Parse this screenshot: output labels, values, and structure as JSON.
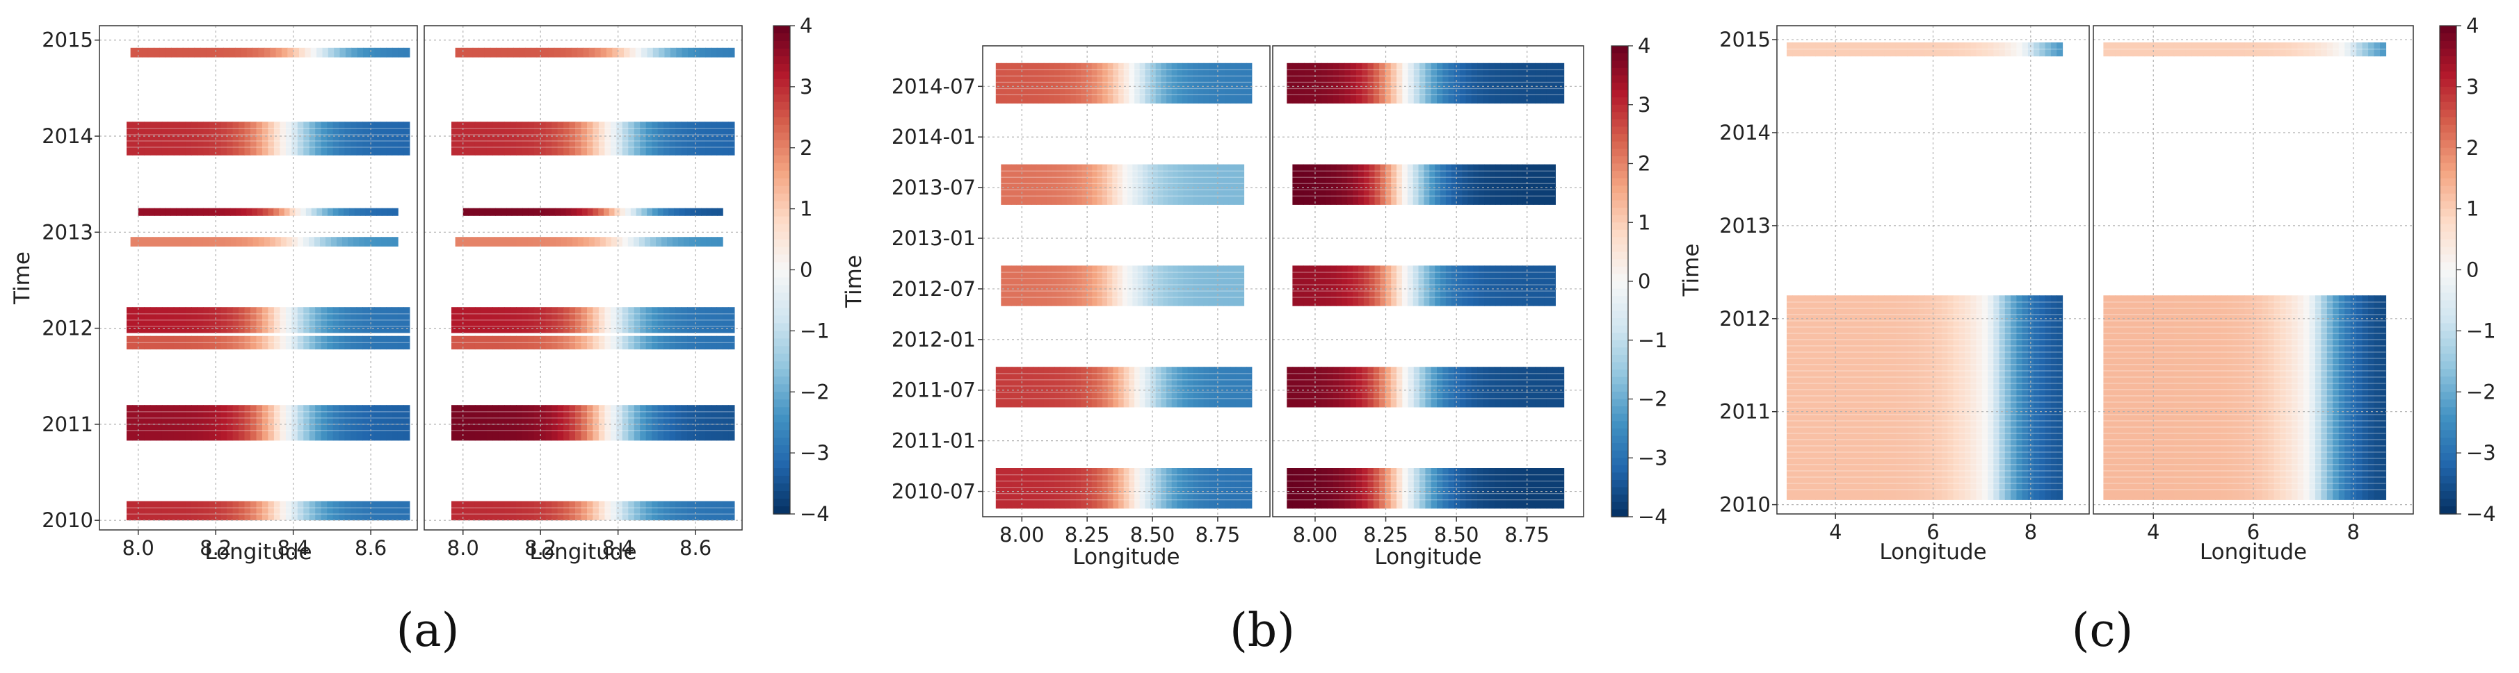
{
  "figure": {
    "colormap": {
      "name": "RdBu_r",
      "range": [
        -4,
        4
      ],
      "stops": [
        "#053061",
        "#2166ac",
        "#4393c3",
        "#92c5de",
        "#d1e5f0",
        "#f7f7f7",
        "#fddbc7",
        "#f4a582",
        "#d6604d",
        "#b2182b",
        "#67001f"
      ]
    },
    "grid_color": "#b0b0b0"
  },
  "chart_data": [
    {
      "type": "heatmap",
      "panel": "(a)",
      "caption": "(a)",
      "xlabel": "Longitude",
      "ylabel": "Time",
      "xlim": [
        7.9,
        8.72
      ],
      "xticks": [
        8.0,
        8.2,
        8.4,
        8.6
      ],
      "xtick_labels": [
        "8.0",
        "8.2",
        "8.4",
        "8.6"
      ],
      "ylim": [
        2009.9,
        2015.15
      ],
      "yticks": [
        2010,
        2011,
        2012,
        2013,
        2014,
        2015
      ],
      "ytick_labels": [
        "2010",
        "2011",
        "2012",
        "2013",
        "2014",
        "2015"
      ],
      "colorbar": {
        "min": -4,
        "max": 4,
        "ticks": [
          4,
          3,
          2,
          1,
          0,
          -1,
          -2,
          -3,
          -4
        ],
        "tick_labels": [
          "4",
          "3",
          "2",
          "1",
          "0",
          "−1",
          "−2",
          "−3",
          "−4"
        ]
      },
      "subplots": [
        {
          "name": "left",
          "bands": [
            {
              "t0": 2010.0,
              "t1": 2010.2,
              "x0": 7.97,
              "x1": 8.7,
              "left": 3.0,
              "right": -3.0,
              "mid": 8.38
            },
            {
              "t0": 2010.83,
              "t1": 2011.2,
              "x0": 7.97,
              "x1": 8.7,
              "left": 3.5,
              "right": -3.3,
              "mid": 8.38
            },
            {
              "t0": 2011.78,
              "t1": 2011.92,
              "x0": 7.97,
              "x1": 8.7,
              "left": 2.5,
              "right": -3.0,
              "mid": 8.38
            },
            {
              "t0": 2011.95,
              "t1": 2012.22,
              "x0": 7.97,
              "x1": 8.7,
              "left": 3.2,
              "right": -3.0,
              "mid": 8.38
            },
            {
              "t0": 2012.85,
              "t1": 2012.95,
              "x0": 7.98,
              "x1": 8.67,
              "left": 2.0,
              "right": -2.5,
              "mid": 8.42
            },
            {
              "t0": 2013.17,
              "t1": 2013.25,
              "x0": 8.0,
              "x1": 8.67,
              "left": 3.5,
              "right": -3.2,
              "mid": 8.42
            },
            {
              "t0": 2013.8,
              "t1": 2014.15,
              "x0": 7.97,
              "x1": 8.7,
              "left": 3.0,
              "right": -3.2,
              "mid": 8.38
            },
            {
              "t0": 2014.82,
              "t1": 2014.92,
              "x0": 7.98,
              "x1": 8.7,
              "left": 2.5,
              "right": -2.8,
              "mid": 8.45
            }
          ]
        },
        {
          "name": "right",
          "bands": [
            {
              "t0": 2010.0,
              "t1": 2010.2,
              "x0": 7.97,
              "x1": 8.7,
              "left": 3.0,
              "right": -3.0,
              "mid": 8.38
            },
            {
              "t0": 2010.83,
              "t1": 2011.2,
              "x0": 7.97,
              "x1": 8.7,
              "left": 3.8,
              "right": -3.5,
              "mid": 8.38
            },
            {
              "t0": 2011.78,
              "t1": 2011.92,
              "x0": 7.97,
              "x1": 8.7,
              "left": 2.5,
              "right": -3.0,
              "mid": 8.38
            },
            {
              "t0": 2011.95,
              "t1": 2012.22,
              "x0": 7.97,
              "x1": 8.7,
              "left": 3.2,
              "right": -3.0,
              "mid": 8.38
            },
            {
              "t0": 2012.85,
              "t1": 2012.95,
              "x0": 7.98,
              "x1": 8.67,
              "left": 2.0,
              "right": -2.5,
              "mid": 8.42
            },
            {
              "t0": 2013.17,
              "t1": 2013.25,
              "x0": 8.0,
              "x1": 8.67,
              "left": 3.8,
              "right": -3.5,
              "mid": 8.42
            },
            {
              "t0": 2013.8,
              "t1": 2014.15,
              "x0": 7.97,
              "x1": 8.7,
              "left": 3.0,
              "right": -3.2,
              "mid": 8.38
            },
            {
              "t0": 2014.82,
              "t1": 2014.92,
              "x0": 7.98,
              "x1": 8.7,
              "left": 2.5,
              "right": -2.8,
              "mid": 8.45
            }
          ]
        }
      ]
    },
    {
      "type": "heatmap",
      "panel": "(b)",
      "caption": "(b)",
      "xlabel": "Longitude",
      "ylabel": "Time",
      "xlim": [
        7.85,
        8.95
      ],
      "xticks": [
        8.0,
        8.25,
        8.5,
        8.75
      ],
      "xtick_labels": [
        "8.00",
        "8.25",
        "8.50",
        "8.75"
      ],
      "ylim": [
        2010.25,
        2014.9
      ],
      "yticks": [
        2010.5,
        2011.0,
        2011.5,
        2012.0,
        2012.5,
        2013.0,
        2013.5,
        2014.0,
        2014.5
      ],
      "ytick_labels": [
        "2010-07",
        "2011-01",
        "2011-07",
        "2012-01",
        "2012-07",
        "2013-01",
        "2013-07",
        "2014-01",
        "2014-07"
      ],
      "colorbar": {
        "min": -4,
        "max": 4,
        "ticks": [
          4,
          3,
          2,
          1,
          0,
          -1,
          -2,
          -3,
          -4
        ],
        "tick_labels": [
          "4",
          "3",
          "2",
          "1",
          "0",
          "−1",
          "−2",
          "−3",
          "−4"
        ]
      },
      "subplots": [
        {
          "name": "left",
          "bands": [
            {
              "t0": 2010.33,
              "t1": 2010.73,
              "x0": 7.9,
              "x1": 8.88,
              "left": 3.0,
              "right": -3.0,
              "mid": 8.45
            },
            {
              "t0": 2011.33,
              "t1": 2011.73,
              "x0": 7.9,
              "x1": 8.88,
              "left": 2.8,
              "right": -2.8,
              "mid": 8.45
            },
            {
              "t0": 2012.33,
              "t1": 2012.73,
              "x0": 7.92,
              "x1": 8.85,
              "left": 2.2,
              "right": -1.8,
              "mid": 8.4
            },
            {
              "t0": 2013.33,
              "t1": 2013.73,
              "x0": 7.92,
              "x1": 8.85,
              "left": 2.2,
              "right": -1.8,
              "mid": 8.4
            },
            {
              "t0": 2014.33,
              "t1": 2014.73,
              "x0": 7.9,
              "x1": 8.88,
              "left": 2.5,
              "right": -2.8,
              "mid": 8.42
            }
          ]
        },
        {
          "name": "right",
          "bands": [
            {
              "t0": 2010.33,
              "t1": 2010.73,
              "x0": 7.9,
              "x1": 8.88,
              "left": 4.0,
              "right": -3.8,
              "mid": 8.32
            },
            {
              "t0": 2011.33,
              "t1": 2011.73,
              "x0": 7.9,
              "x1": 8.88,
              "left": 3.8,
              "right": -3.6,
              "mid": 8.32
            },
            {
              "t0": 2012.33,
              "t1": 2012.73,
              "x0": 7.92,
              "x1": 8.85,
              "left": 3.5,
              "right": -3.4,
              "mid": 8.32
            },
            {
              "t0": 2013.33,
              "t1": 2013.73,
              "x0": 7.92,
              "x1": 8.85,
              "left": 4.0,
              "right": -3.8,
              "mid": 8.32
            },
            {
              "t0": 2014.33,
              "t1": 2014.73,
              "x0": 7.9,
              "x1": 8.88,
              "left": 3.8,
              "right": -3.6,
              "mid": 8.32
            }
          ]
        }
      ]
    },
    {
      "type": "heatmap",
      "panel": "(c)",
      "caption": "(c)",
      "xlabel": "Longitude",
      "ylabel": "Time",
      "xlim": [
        2.8,
        9.2
      ],
      "xticks": [
        4,
        6,
        8
      ],
      "xtick_labels": [
        "4",
        "6",
        "8"
      ],
      "ylim": [
        2009.9,
        2015.15
      ],
      "yticks": [
        2010,
        2011,
        2012,
        2013,
        2014,
        2015
      ],
      "ytick_labels": [
        "2010",
        "2011",
        "2012",
        "2013",
        "2014",
        "2015"
      ],
      "colorbar": {
        "min": -4,
        "max": 4,
        "ticks": [
          4,
          3,
          2,
          1,
          0,
          -1,
          -2,
          -3,
          -4
        ],
        "tick_labels": [
          "4",
          "3",
          "2",
          "1",
          "0",
          "−1",
          "−2",
          "−3",
          "−4"
        ]
      },
      "subplots": [
        {
          "name": "left",
          "bands": [
            {
              "t0": 2010.05,
              "t1": 2012.25,
              "x0": 3.0,
              "x1": 8.65,
              "left": 1.2,
              "right": -3.6,
              "mid": 7.1
            },
            {
              "t0": 2014.82,
              "t1": 2014.97,
              "x0": 3.0,
              "x1": 8.65,
              "left": 1.0,
              "right": -3.0,
              "mid": 7.8
            }
          ]
        },
        {
          "name": "right",
          "bands": [
            {
              "t0": 2010.05,
              "t1": 2012.25,
              "x0": 3.0,
              "x1": 8.65,
              "left": 1.3,
              "right": -3.8,
              "mid": 7.1
            },
            {
              "t0": 2014.82,
              "t1": 2014.97,
              "x0": 3.0,
              "x1": 8.65,
              "left": 1.0,
              "right": -3.0,
              "mid": 7.8
            }
          ]
        }
      ]
    }
  ]
}
